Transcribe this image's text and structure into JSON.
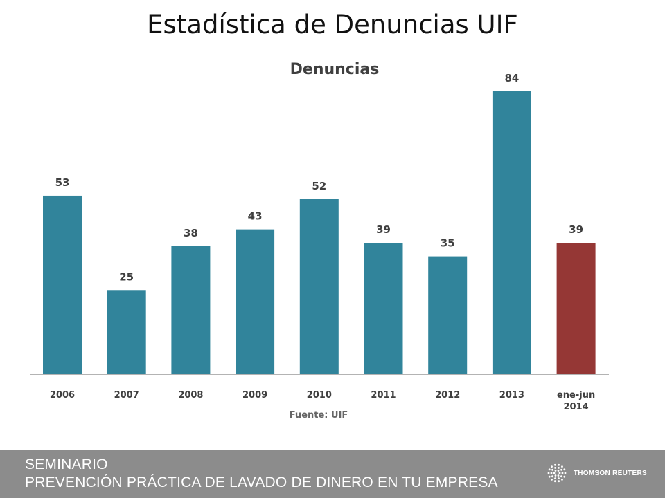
{
  "slide_title": "Estadística de Denuncias UIF",
  "chart_data": {
    "type": "bar",
    "title": "Denuncias",
    "source_note": "Fuente: UIF",
    "categories": [
      "2006",
      "2007",
      "2008",
      "2009",
      "2010",
      "2011",
      "2012",
      "2013",
      "ene-jun 2014"
    ],
    "values": [
      53,
      25,
      38,
      43,
      52,
      39,
      35,
      84,
      39
    ],
    "ylim": [
      0,
      84
    ],
    "grid": false,
    "colors": {
      "default": "#31849b",
      "highlight": "#953735",
      "highlight_category": "ene-jun 2014"
    }
  },
  "footer": {
    "line1": "SEMINARIO",
    "line2": "PREVENCIÓN PRÁCTICA DE LAVADO DE DINERO EN TU EMPRESA",
    "logo_text": "THOMSON REUTERS",
    "background": "#8c8c8c"
  }
}
